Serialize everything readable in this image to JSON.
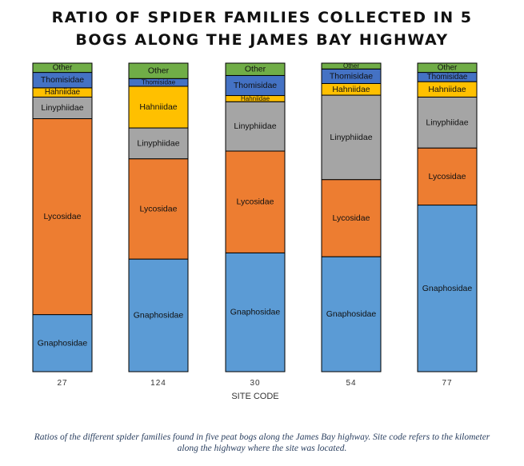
{
  "chart_data": {
    "type": "bar",
    "stacked": true,
    "normalized": true,
    "title_lines": [
      "RATIO OF SPIDER FAMILIES COLLECTED IN 5",
      "BOGS ALONG THE JAMES BAY HIGHWAY"
    ],
    "xlabel": "SITE CODE",
    "ylabel": "",
    "categories": [
      "27",
      "124",
      "30",
      "54",
      "77"
    ],
    "series": [
      {
        "name": "Gnaphosidae",
        "color": "#5b9bd5",
        "values": [
          0.185,
          0.365,
          0.385,
          0.395,
          0.54
        ]
      },
      {
        "name": "Lycosidae",
        "color": "#ed7d31",
        "values": [
          0.635,
          0.325,
          0.33,
          0.265,
          0.185
        ]
      },
      {
        "name": "Linyphiidae",
        "color": "#a5a5a5",
        "values": [
          0.07,
          0.1,
          0.16,
          0.29,
          0.165
        ]
      },
      {
        "name": "Hahniidae",
        "color": "#ffc000",
        "values": [
          0.03,
          0.135,
          0.02,
          0.04,
          0.05
        ]
      },
      {
        "name": "Thomisidae",
        "color": "#4472c4",
        "values": [
          0.05,
          0.025,
          0.065,
          0.05,
          0.03
        ]
      },
      {
        "name": "Other",
        "color": "#70ad47",
        "values": [
          0.03,
          0.05,
          0.04,
          0.02,
          0.03
        ]
      }
    ]
  },
  "caption_lines": [
    "Ratios of the different spider families found in five peat bogs along the James Bay highway. Site code refers to the kilometer",
    "along the highway where the site was located."
  ]
}
